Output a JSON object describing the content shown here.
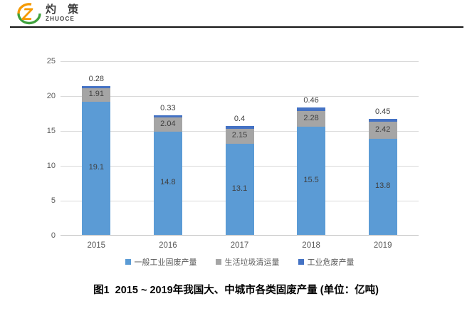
{
  "brand": {
    "name_cn": "灼 策",
    "name_en": "ZHUOCE",
    "logo_letter": "Z",
    "logo_colors": {
      "orange": "#F59A00",
      "green": "#3FA13C"
    }
  },
  "chart_data": {
    "type": "bar",
    "stacked": true,
    "title": "",
    "categories": [
      "2015",
      "2016",
      "2017",
      "2018",
      "2019"
    ],
    "series": [
      {
        "name": "一般工业固废产量",
        "color": "#5B9BD5",
        "values": [
          19.1,
          14.8,
          13.1,
          15.5,
          13.8
        ],
        "label_placement": "inside"
      },
      {
        "name": "生活垃圾清运量",
        "color": "#A5A5A5",
        "values": [
          1.91,
          2.04,
          2.15,
          2.28,
          2.42
        ],
        "label_placement": "inside"
      },
      {
        "name": "工业危废产量",
        "color": "#4472C4",
        "values": [
          0.28,
          0.33,
          0.4,
          0.46,
          0.45
        ],
        "label_placement": "above"
      }
    ],
    "ylim": [
      0,
      25
    ],
    "ytick_interval": 5,
    "yticks": [
      "0",
      "5",
      "10",
      "15",
      "20",
      "25"
    ],
    "grid": true,
    "legend_position": "bottom"
  },
  "caption": "图1  2015 ~ 2019年我国大、中城市各类固废产量 (单位：亿吨)"
}
